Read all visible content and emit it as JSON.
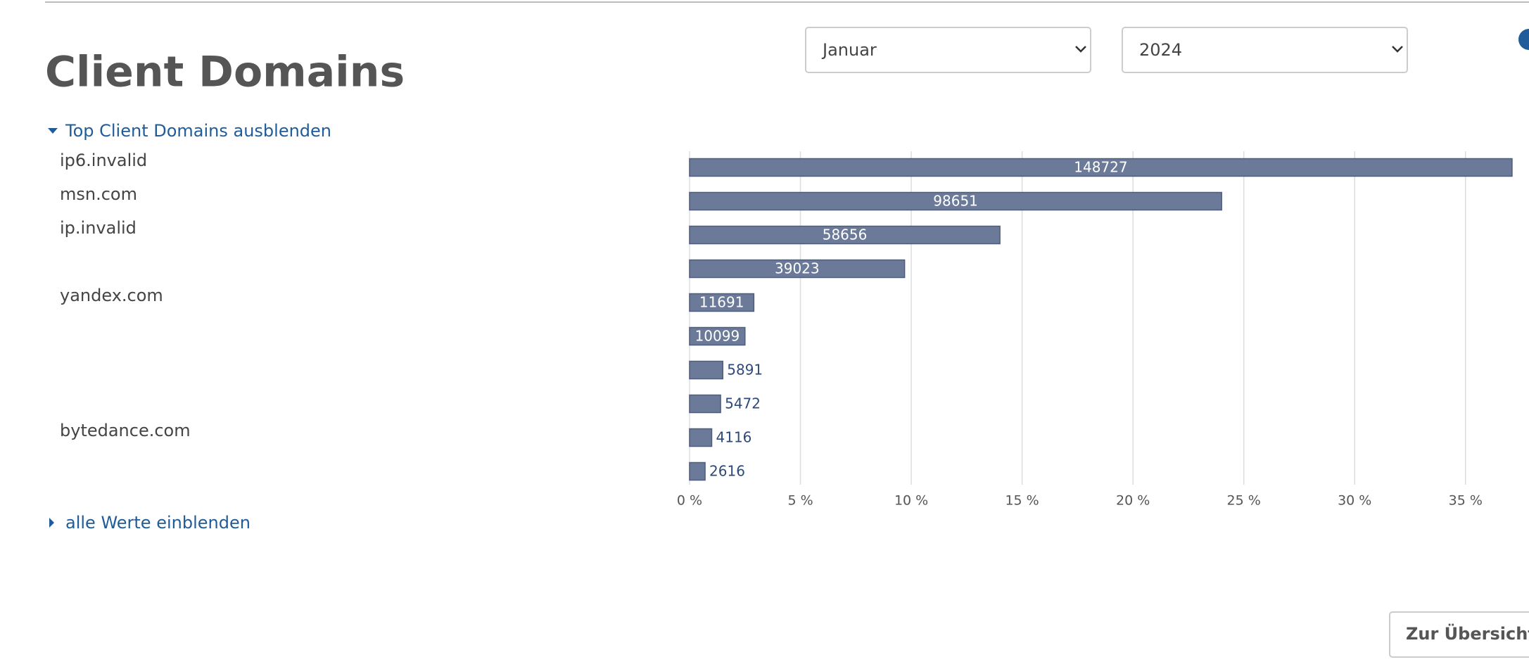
{
  "header": {
    "title": "Client Domains"
  },
  "selects": {
    "month": "Januar",
    "year": "2024"
  },
  "toggles": {
    "top": "Top Client Domains ausblenden",
    "all": "alle Werte einblenden"
  },
  "button": "Zur Übersicht",
  "chart_data": {
    "type": "bar",
    "orientation": "horizontal",
    "categories": [
      "ip6.invalid",
      "msn.com",
      "ip.invalid",
      null,
      "yandex.com",
      null,
      null,
      null,
      "bytedance.com",
      null
    ],
    "values": [
      37.1,
      24.0,
      14.0,
      9.7,
      2.9,
      2.5,
      1.5,
      1.4,
      1.0,
      0.7
    ],
    "counts": [
      148727,
      98651,
      58656,
      39023,
      11691,
      10099,
      5891,
      5472,
      4116,
      2616
    ],
    "color": "#6b7a99",
    "xlim": [
      0,
      37.8
    ],
    "xticks": [
      {
        "value": 0,
        "label": "0 %"
      },
      {
        "value": 5,
        "label": "5 %"
      },
      {
        "value": 10,
        "label": "10 %"
      },
      {
        "value": 15,
        "label": "15 %"
      },
      {
        "value": 20,
        "label": "20 %"
      },
      {
        "value": 25,
        "label": "25 %"
      },
      {
        "value": 30,
        "label": "30 %"
      },
      {
        "value": 35,
        "label": "35 %"
      }
    ],
    "grid": true
  }
}
